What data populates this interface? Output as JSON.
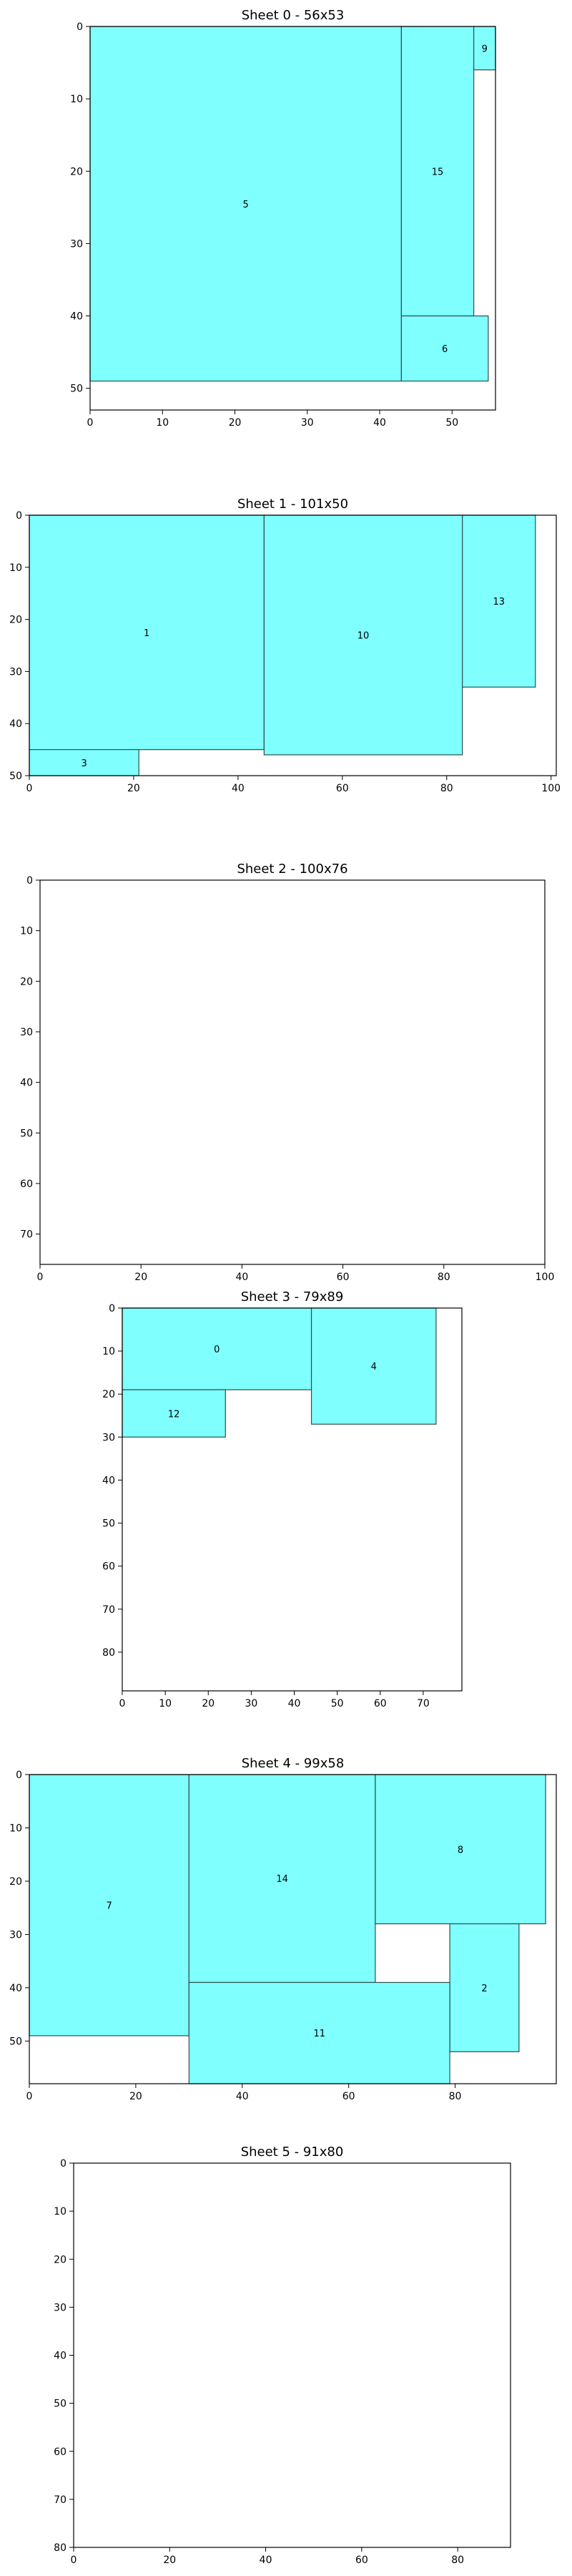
{
  "colors": {
    "piece_fill": "#80ffff",
    "piece_stroke": "#2f4f4f",
    "axis": "#000000",
    "background": "#ffffff"
  },
  "chart_data": [
    {
      "type": "bar",
      "title": "Sheet 0 - 56x53",
      "xlim": [
        0,
        56
      ],
      "ylim": [
        53,
        0
      ],
      "xticks": [
        0,
        10,
        20,
        30,
        40,
        50
      ],
      "yticks": [
        0,
        10,
        20,
        30,
        40,
        50
      ],
      "grid": false,
      "pieces": [
        {
          "label": "5",
          "x": 0,
          "y": 0,
          "w": 43,
          "h": 49
        },
        {
          "label": "15",
          "x": 43,
          "y": 0,
          "w": 10,
          "h": 40
        },
        {
          "label": "9",
          "x": 53,
          "y": 0,
          "w": 3,
          "h": 6
        },
        {
          "label": "6",
          "x": 43,
          "y": 40,
          "w": 12,
          "h": 9
        }
      ]
    },
    {
      "type": "bar",
      "title": "Sheet 1 - 101x50",
      "xlim": [
        0,
        101
      ],
      "ylim": [
        50,
        0
      ],
      "xticks": [
        0,
        20,
        40,
        60,
        80,
        100
      ],
      "yticks": [
        0,
        10,
        20,
        30,
        40,
        50
      ],
      "grid": false,
      "pieces": [
        {
          "label": "1",
          "x": 0,
          "y": 0,
          "w": 45,
          "h": 45
        },
        {
          "label": "10",
          "x": 45,
          "y": 0,
          "w": 38,
          "h": 46
        },
        {
          "label": "13",
          "x": 83,
          "y": 0,
          "w": 14,
          "h": 33
        },
        {
          "label": "3",
          "x": 0,
          "y": 45,
          "w": 21,
          "h": 5
        }
      ]
    },
    {
      "type": "bar",
      "title": "Sheet 2 - 100x76",
      "xlim": [
        0,
        100
      ],
      "ylim": [
        76,
        0
      ],
      "xticks": [
        0,
        20,
        40,
        60,
        80,
        100
      ],
      "yticks": [
        0,
        10,
        20,
        30,
        40,
        50,
        60,
        70
      ],
      "grid": false,
      "pieces": []
    },
    {
      "type": "bar",
      "title": "Sheet 3 - 79x89",
      "xlim": [
        0,
        79
      ],
      "ylim": [
        89,
        0
      ],
      "xticks": [
        0,
        10,
        20,
        30,
        40,
        50,
        60,
        70
      ],
      "yticks": [
        0,
        10,
        20,
        30,
        40,
        50,
        60,
        70,
        80
      ],
      "grid": false,
      "pieces": [
        {
          "label": "0",
          "x": 0,
          "y": 0,
          "w": 44,
          "h": 19
        },
        {
          "label": "4",
          "x": 44,
          "y": 0,
          "w": 29,
          "h": 27
        },
        {
          "label": "12",
          "x": 0,
          "y": 19,
          "w": 24,
          "h": 11
        }
      ]
    },
    {
      "type": "bar",
      "title": "Sheet 4 - 99x58",
      "xlim": [
        0,
        99
      ],
      "ylim": [
        58,
        0
      ],
      "xticks": [
        0,
        20,
        40,
        60,
        80
      ],
      "yticks": [
        0,
        10,
        20,
        30,
        40,
        50
      ],
      "grid": false,
      "pieces": [
        {
          "label": "7",
          "x": 0,
          "y": 0,
          "w": 30,
          "h": 49
        },
        {
          "label": "14",
          "x": 30,
          "y": 0,
          "w": 35,
          "h": 39
        },
        {
          "label": "8",
          "x": 65,
          "y": 0,
          "w": 32,
          "h": 28
        },
        {
          "label": "2",
          "x": 79,
          "y": 28,
          "w": 13,
          "h": 24
        },
        {
          "label": "11",
          "x": 30,
          "y": 39,
          "w": 49,
          "h": 19
        }
      ]
    },
    {
      "type": "bar",
      "title": "Sheet 5 - 91x80",
      "xlim": [
        0,
        91
      ],
      "ylim": [
        80,
        0
      ],
      "xticks": [
        0,
        20,
        40,
        60,
        80
      ],
      "yticks": [
        0,
        10,
        20,
        30,
        40,
        50,
        60,
        70,
        80
      ],
      "grid": false,
      "pieces": []
    }
  ]
}
